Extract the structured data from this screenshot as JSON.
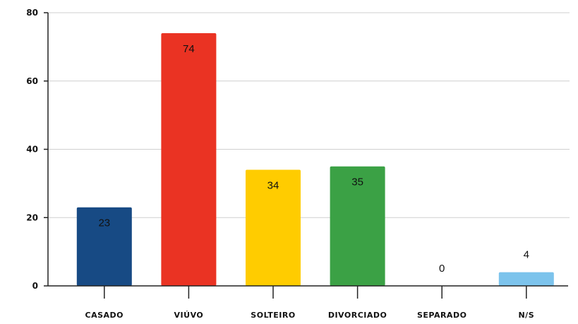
{
  "chart_data": {
    "type": "bar",
    "categories": [
      "CASADO",
      "VIÚVO",
      "SOLTEIRO",
      "DIVORCIADO",
      "SEPARADO",
      "N/S"
    ],
    "values": [
      23,
      74,
      34,
      35,
      0,
      4
    ],
    "colors": [
      "#174a84",
      "#ea3323",
      "#ffcc00",
      "#3ba145",
      "#cccccc",
      "#7cc3ec"
    ],
    "ylim": [
      0,
      80
    ],
    "yticks": [
      "0",
      "20",
      "40",
      "60",
      "80"
    ],
    "grid": true,
    "title": "",
    "xlabel": "",
    "ylabel": ""
  }
}
